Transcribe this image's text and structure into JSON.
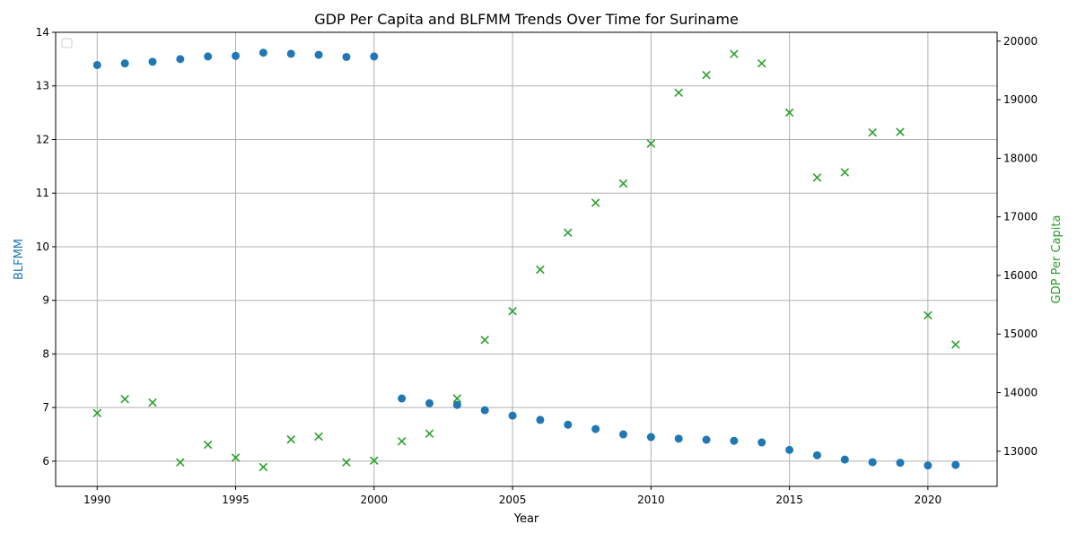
{
  "chart_data": {
    "type": "scatter",
    "title": "GDP Per Capita and BLFMM Trends Over Time for Suriname",
    "xlabel": "Year",
    "ylabel_left": "BLFMM",
    "ylabel_right": "GDP Per Capita",
    "xlim": [
      1988.5,
      2022.5
    ],
    "ylim_left": [
      5.53,
      14.0
    ],
    "ylim_right": [
      12400,
      20150
    ],
    "xticks": [
      1990,
      1995,
      2000,
      2005,
      2010,
      2015,
      2020
    ],
    "yticks_left": [
      6,
      7,
      8,
      9,
      10,
      11,
      12,
      13,
      14
    ],
    "yticks_right": [
      13000,
      14000,
      15000,
      16000,
      17000,
      18000,
      19000,
      20000
    ],
    "grid": true,
    "legend_placement": "top-left",
    "colors": {
      "blfmm": "#1f77b4",
      "gdp": "#2ca02c",
      "left_label": "#1f77b4",
      "right_label": "#2ca02c"
    },
    "series": [
      {
        "key": "blfmm",
        "axis": "left",
        "marker": "circle",
        "x": [
          1990,
          1991,
          1992,
          1993,
          1994,
          1995,
          1996,
          1997,
          1998,
          1999,
          2000,
          2001,
          2002,
          2003,
          2004,
          2005,
          2006,
          2007,
          2008,
          2009,
          2010,
          2011,
          2012,
          2013,
          2014,
          2015,
          2016,
          2017,
          2018,
          2019,
          2020,
          2021
        ],
        "values": [
          13.39,
          13.42,
          13.45,
          13.5,
          13.55,
          13.56,
          13.62,
          13.6,
          13.58,
          13.54,
          13.55,
          7.17,
          7.08,
          7.05,
          6.95,
          6.85,
          6.77,
          6.68,
          6.6,
          6.5,
          6.45,
          6.42,
          6.4,
          6.38,
          6.35,
          6.21,
          6.11,
          6.03,
          5.98,
          5.97,
          5.92,
          5.93
        ]
      },
      {
        "key": "gdp",
        "axis": "right",
        "marker": "x",
        "x": [
          1990,
          1991,
          1992,
          1993,
          1994,
          1995,
          1996,
          1997,
          1998,
          1999,
          2000,
          2001,
          2002,
          2003,
          2004,
          2005,
          2006,
          2007,
          2008,
          2009,
          2010,
          2011,
          2012,
          2013,
          2014,
          2015,
          2016,
          2017,
          2018,
          2019,
          2020,
          2021
        ],
        "values": [
          13650,
          13890,
          13830,
          12810,
          13110,
          12890,
          12730,
          13200,
          13250,
          12810,
          12840,
          13170,
          13300,
          13900,
          14900,
          15390,
          16100,
          16730,
          17240,
          17570,
          18250,
          19120,
          19420,
          19780,
          19620,
          18780,
          17670,
          17760,
          18440,
          18450,
          15320,
          14820
        ]
      }
    ]
  }
}
